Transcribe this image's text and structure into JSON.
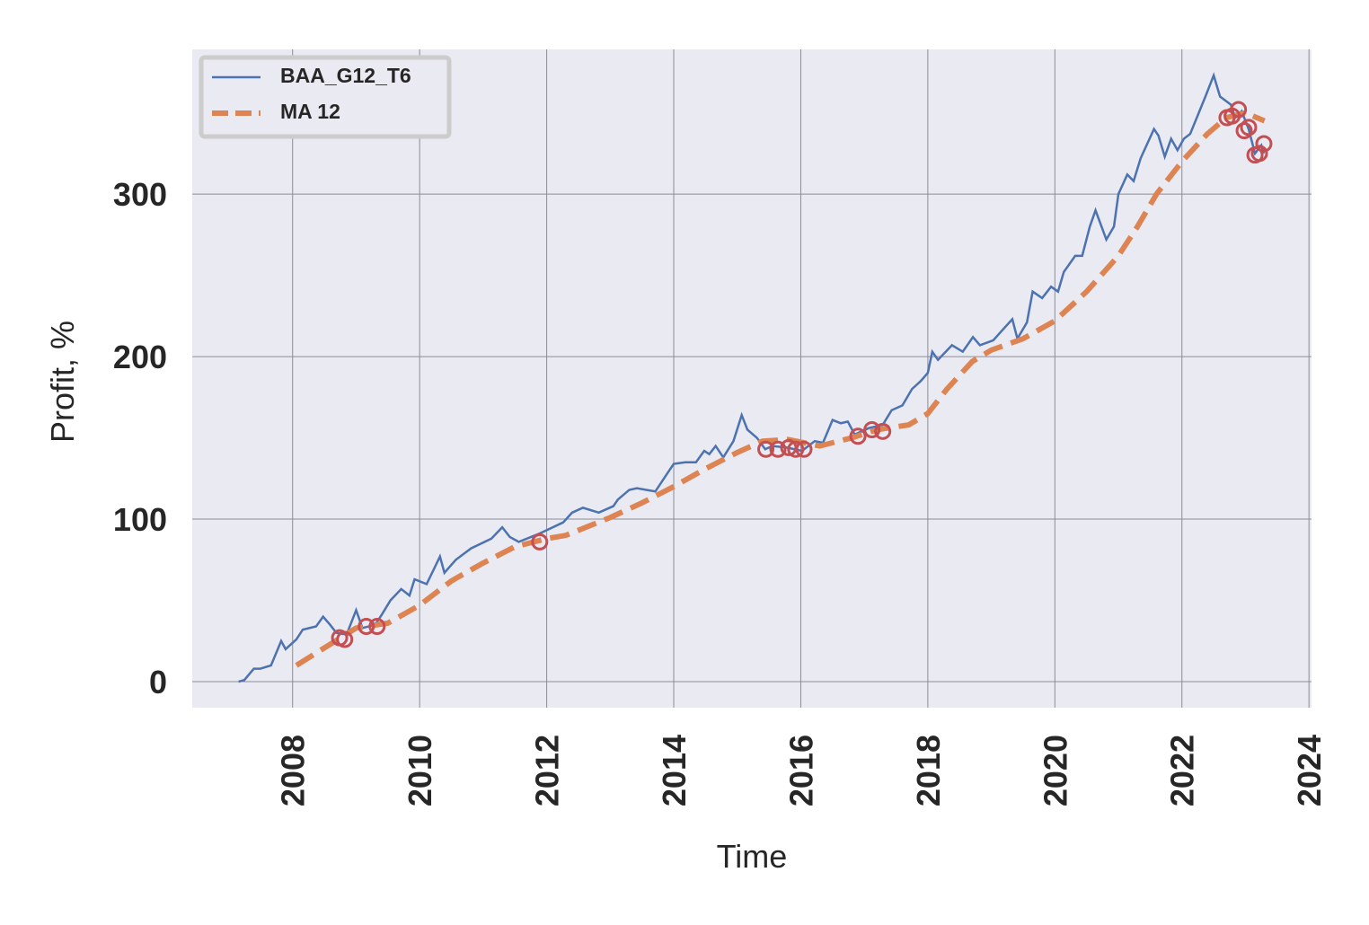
{
  "chart_data": {
    "type": "line",
    "xlabel": "Time",
    "ylabel": "Profit, %",
    "xlim": [
      2006.42,
      2024.04
    ],
    "ylim": [
      -16,
      389
    ],
    "xticks": [
      2008,
      2010,
      2012,
      2014,
      2016,
      2018,
      2020,
      2022,
      2024
    ],
    "yticks": [
      0,
      100,
      200,
      300
    ],
    "grid": true,
    "legend": "upper left",
    "series": [
      {
        "name": "BAA_G12_T6",
        "color": "#4c72b0",
        "style": "solid",
        "x": [
          2007.15,
          2007.24,
          2007.39,
          2007.49,
          2007.66,
          2007.82,
          2007.89,
          2008.06,
          2008.16,
          2008.37,
          2008.48,
          2008.59,
          2008.69,
          2008.85,
          2009.0,
          2009.1,
          2009.3,
          2009.4,
          2009.54,
          2009.71,
          2009.84,
          2009.92,
          2010.11,
          2010.32,
          2010.39,
          2010.57,
          2010.81,
          2011.13,
          2011.3,
          2011.42,
          2011.56,
          2011.88,
          2012.26,
          2012.4,
          2012.57,
          2012.82,
          2013.05,
          2013.12,
          2013.3,
          2013.42,
          2013.71,
          2013.93,
          2014.0,
          2014.18,
          2014.35,
          2014.48,
          2014.56,
          2014.66,
          2014.78,
          2014.94,
          2015.07,
          2015.16,
          2015.31,
          2015.44,
          2015.55,
          2015.78,
          2016.02,
          2016.22,
          2016.35,
          2016.5,
          2016.63,
          2016.74,
          2016.85,
          2017.07,
          2017.29,
          2017.43,
          2017.6,
          2017.75,
          2017.89,
          2018.0,
          2018.07,
          2018.16,
          2018.38,
          2018.55,
          2018.71,
          2018.82,
          2019.03,
          2019.19,
          2019.33,
          2019.41,
          2019.56,
          2019.65,
          2019.8,
          2019.94,
          2020.05,
          2020.14,
          2020.32,
          2020.43,
          2020.55,
          2020.64,
          2020.81,
          2020.93,
          2021.0,
          2021.14,
          2021.24,
          2021.35,
          2021.56,
          2021.63,
          2021.73,
          2021.83,
          2021.93,
          2022.03,
          2022.13,
          2022.37,
          2022.5,
          2022.6,
          2022.77,
          2022.84,
          2022.94,
          2023.05,
          2023.15,
          2023.25,
          2023.29
        ],
        "values": [
          0,
          1,
          8,
          8,
          10,
          25,
          20,
          26,
          32,
          34,
          40,
          35,
          30,
          29,
          44,
          33,
          35,
          41,
          50,
          57,
          53,
          63,
          60,
          77,
          67,
          75,
          82,
          88,
          95,
          89,
          86,
          91,
          98,
          104,
          107,
          104,
          108,
          112,
          118,
          119,
          117,
          130,
          134,
          135,
          135,
          142,
          140,
          145,
          138,
          148,
          164,
          155,
          150,
          143,
          145,
          144,
          142,
          148,
          147,
          161,
          159,
          160,
          152,
          156,
          158,
          167,
          170,
          180,
          185,
          190,
          203,
          198,
          207,
          203,
          212,
          207,
          210,
          217,
          223,
          211,
          221,
          240,
          236,
          243,
          240,
          252,
          262,
          262,
          280,
          290,
          272,
          280,
          300,
          312,
          308,
          322,
          340,
          336,
          323,
          334,
          327,
          334,
          337,
          360,
          373,
          360,
          355,
          347,
          351,
          340,
          325,
          330,
          325
        ]
      },
      {
        "name": "MA 12",
        "color": "#dd8452",
        "style": "dashed",
        "x": [
          2008.06,
          2009.0,
          2009.5,
          2010.0,
          2010.5,
          2011.0,
          2011.5,
          2012.0,
          2012.3,
          2013.0,
          2013.5,
          2014.0,
          2014.5,
          2015.0,
          2015.4,
          2015.8,
          2016.3,
          2016.8,
          2017.2,
          2017.7,
          2018.0,
          2018.3,
          2018.7,
          2019.0,
          2019.5,
          2020.0,
          2020.5,
          2021.0,
          2021.3,
          2021.6,
          2022.0,
          2022.4,
          2022.7,
          2023.0,
          2023.3
        ],
        "values": [
          10,
          33,
          36,
          47,
          62,
          73,
          83,
          88,
          90,
          101,
          110,
          120,
          131,
          141,
          148,
          149,
          145,
          150,
          155,
          158,
          165,
          180,
          197,
          204,
          211,
          222,
          240,
          262,
          280,
          300,
          320,
          337,
          347,
          350,
          345
        ]
      }
    ],
    "markers": {
      "color": "#c44e52",
      "x": [
        2008.74,
        2008.82,
        2009.16,
        2009.33,
        2011.89,
        2015.45,
        2015.64,
        2015.81,
        2015.92,
        2016.05,
        2016.9,
        2017.12,
        2017.29,
        2022.71,
        2022.79,
        2022.89,
        2022.98,
        2023.05,
        2023.15,
        2023.22,
        2023.29
      ],
      "values": [
        27,
        26,
        34,
        34,
        86,
        143,
        143,
        144,
        143,
        143,
        151,
        155,
        154,
        347,
        348,
        352,
        339,
        341,
        324,
        325,
        331
      ]
    }
  }
}
